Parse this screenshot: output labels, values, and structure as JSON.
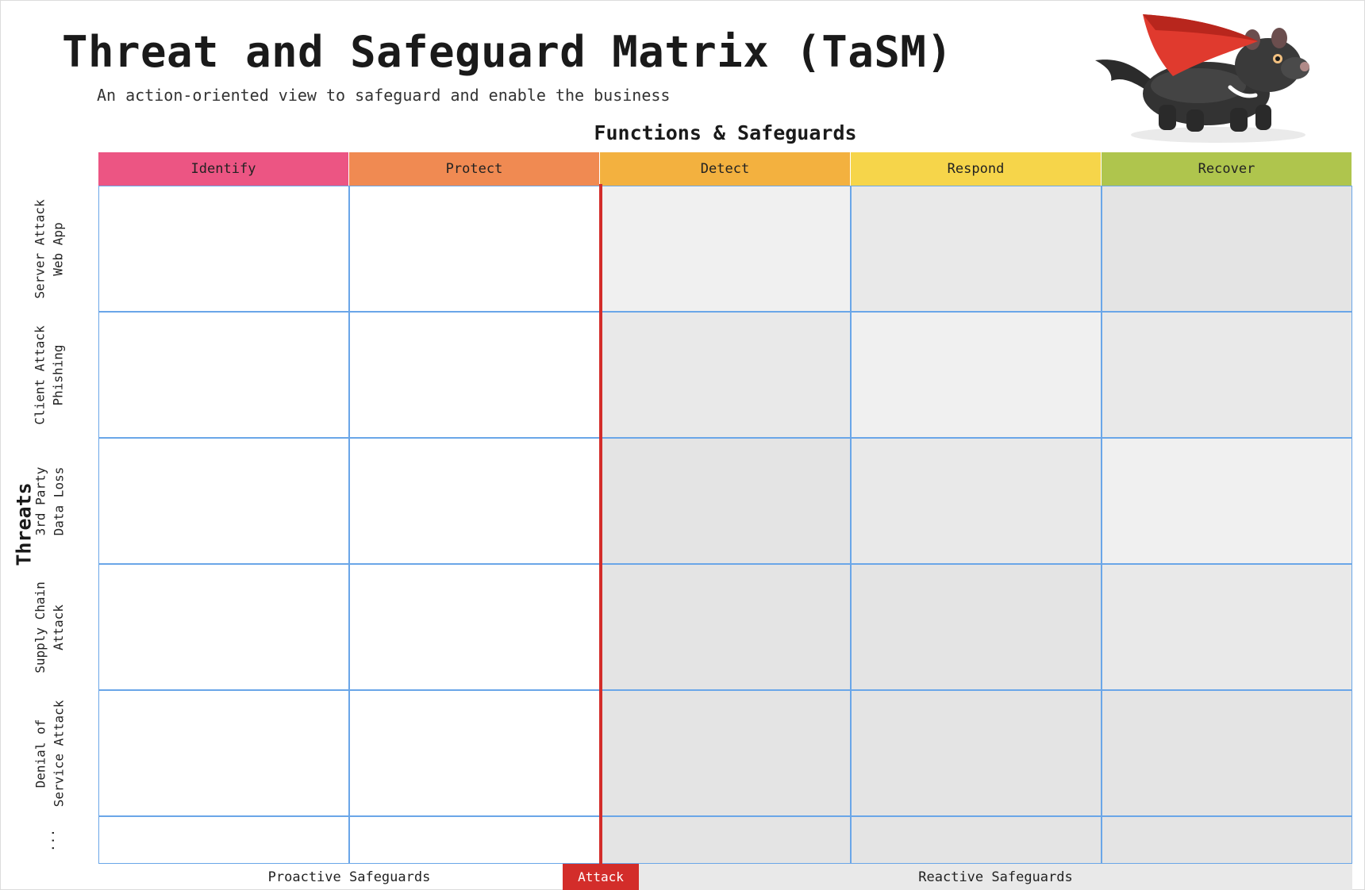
{
  "title": "Threat and Safeguard Matrix (TaSM)",
  "subtitle": "An action-oriented view to safeguard and enable the business",
  "functions_heading": "Functions & Safeguards",
  "threats_heading": "Threats",
  "functions": [
    {
      "label": "Identify",
      "color": "#ec5583"
    },
    {
      "label": "Protect",
      "color": "#f08a52"
    },
    {
      "label": "Detect",
      "color": "#f3b13f"
    },
    {
      "label": "Respond",
      "color": "#f6d54a"
    },
    {
      "label": "Recover",
      "color": "#afc54d"
    }
  ],
  "threats": [
    {
      "line1": "Server Attack",
      "line2": "Web App"
    },
    {
      "line1": "Client Attack",
      "line2": "Phishing"
    },
    {
      "line1": "3rd Party",
      "line2": "Data Loss"
    },
    {
      "line1": "Supply Chain",
      "line2": "Attack"
    },
    {
      "line1": "Denial of",
      "line2": "Service Attack"
    },
    {
      "line1": "...",
      "line2": ""
    }
  ],
  "cell_colors": [
    [
      "#ffffff",
      "#ffffff",
      "#f0f0f0",
      "#e9e9e9",
      "#e4e4e4"
    ],
    [
      "#ffffff",
      "#ffffff",
      "#e9e9e9",
      "#f0f0f0",
      "#e9e9e9"
    ],
    [
      "#ffffff",
      "#ffffff",
      "#e4e4e4",
      "#e9e9e9",
      "#f0f0f0"
    ],
    [
      "#ffffff",
      "#ffffff",
      "#e4e4e4",
      "#e4e4e4",
      "#e9e9e9"
    ],
    [
      "#ffffff",
      "#ffffff",
      "#e4e4e4",
      "#e4e4e4",
      "#e4e4e4"
    ],
    [
      "#ffffff",
      "#ffffff",
      "#e4e4e4",
      "#e4e4e4",
      "#e4e4e4"
    ]
  ],
  "footer": {
    "proactive": "Proactive Safeguards",
    "attack": "Attack",
    "reactive": "Reactive Safeguards"
  },
  "colors": {
    "grid_line": "#6aa6e8",
    "attack_red": "#d32d2a",
    "cape_red": "#e03a2e"
  },
  "mascot_icon": "tasmanian-devil-mascot"
}
